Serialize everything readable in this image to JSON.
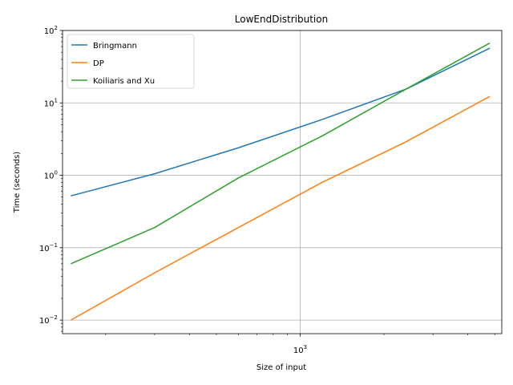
{
  "chart_data": {
    "type": "line",
    "title": "LowEndDistribution",
    "xlabel": "Size of input",
    "ylabel": "Time (seconds)",
    "xscale": "log",
    "yscale": "log",
    "xlim": [
      140,
      5300
    ],
    "ylim": [
      0.0065,
      100
    ],
    "grid": "major",
    "legend_position": "top-left",
    "x_tick_labels": [
      {
        "value": 1000,
        "base": "10",
        "exp": "3"
      }
    ],
    "y_tick_labels": [
      {
        "value": 0.01,
        "base": "10",
        "exp": "−2"
      },
      {
        "value": 0.1,
        "base": "10",
        "exp": "−1"
      },
      {
        "value": 1,
        "base": "10",
        "exp": "0"
      },
      {
        "value": 10,
        "base": "10",
        "exp": "1"
      },
      {
        "value": 100,
        "base": "10",
        "exp": "2"
      }
    ],
    "x": [
      150,
      300,
      600,
      1200,
      2400,
      4800
    ],
    "series": [
      {
        "name": "Bringmann",
        "color": "#1f77b4",
        "values": [
          0.52,
          1.05,
          2.4,
          5.9,
          15.5,
          57
        ]
      },
      {
        "name": "DP",
        "color": "#ff7f0e",
        "values": [
          0.01,
          0.045,
          0.19,
          0.8,
          2.9,
          12.3
        ]
      },
      {
        "name": "Koiliaris and Xu",
        "color": "#2ca02c",
        "values": [
          0.06,
          0.19,
          0.92,
          3.5,
          15.5,
          67
        ]
      }
    ]
  }
}
